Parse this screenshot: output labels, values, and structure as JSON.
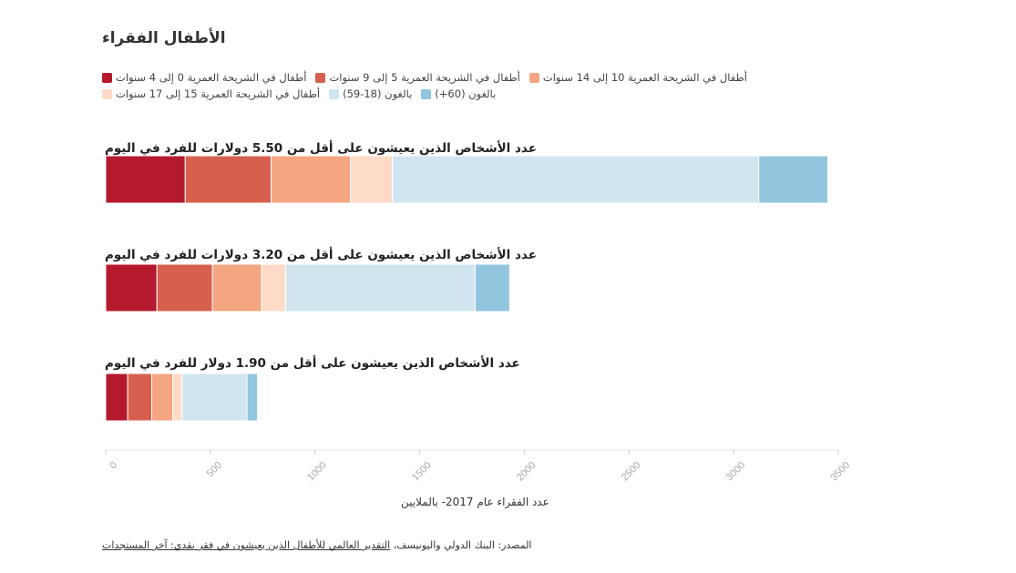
{
  "title": "الأطفال الفقراء",
  "legend": {
    "row1": [
      {
        "label": "أطفال في الشريحة العمرية 0 إلى 4 سنوات",
        "color": "#b5192e"
      },
      {
        "label": "أطفال في الشريحة العمرية 5 إلى 9 سنوات",
        "color": "#d6604d"
      },
      {
        "label": "أطفال في الشريحة العمرية 10 إلى 14 سنوات",
        "color": "#f4a582"
      }
    ],
    "row2": [
      {
        "label": "أطفال في الشريحة العمرية 15 إلى 17 سنوات",
        "color": "#fddbc7"
      },
      {
        "label": "بالغون (18-59)",
        "color": "#d1e5f0"
      },
      {
        "label": "بالغون (60+)",
        "color": "#92c5de"
      }
    ]
  },
  "chart_data": {
    "type": "bar",
    "orientation": "horizontal",
    "stacked": true,
    "categories": [
      "عدد الأشخاص الذين يعيشون على أقل من 5.50 دولارات للفرد في اليوم",
      "عدد الأشخاص الذين يعيشون على أقل من 3.20 دولارات للفرد في اليوم",
      "عدد الأشخاص الذين يعيشون على أقل من 1.90 دولار للفرد في اليوم"
    ],
    "series": [
      {
        "name": "أطفال في الشريحة العمرية 0 إلى 4 سنوات",
        "color": "#b5192e",
        "values": [
          380,
          245,
          105
        ]
      },
      {
        "name": "أطفال في الشريحة العمرية 5 إلى 9 سنوات",
        "color": "#d6604d",
        "values": [
          410,
          265,
          115
        ]
      },
      {
        "name": "أطفال في الشريحة العمرية 10 إلى 14 سنوات",
        "color": "#f4a582",
        "values": [
          380,
          235,
          100
        ]
      },
      {
        "name": "أطفال في الشريحة العمرية 15 إلى 17 سنوات",
        "color": "#fddbc7",
        "values": [
          200,
          115,
          45
        ]
      },
      {
        "name": "بالغون (18-59)",
        "color": "#d1e5f0",
        "values": [
          1750,
          905,
          310
        ]
      },
      {
        "name": "بالغون (60+)",
        "color": "#92c5de",
        "values": [
          330,
          165,
          50
        ]
      }
    ],
    "xlim": [
      0,
      3500
    ],
    "xticks": [
      0,
      500,
      1000,
      1500,
      2000,
      2500,
      3000,
      3500
    ],
    "xlabel": "عدد الفقراء عام 2017- بالملايين",
    "ylabel": "",
    "grid": false,
    "legend_position": "top"
  },
  "source": {
    "prefix": "المصدر: البنك الدولي واليونيسف، ",
    "link": "التقدير العالمي للأطفال الذين يعيشون في فقر نقدي: آخر المستجدات"
  }
}
